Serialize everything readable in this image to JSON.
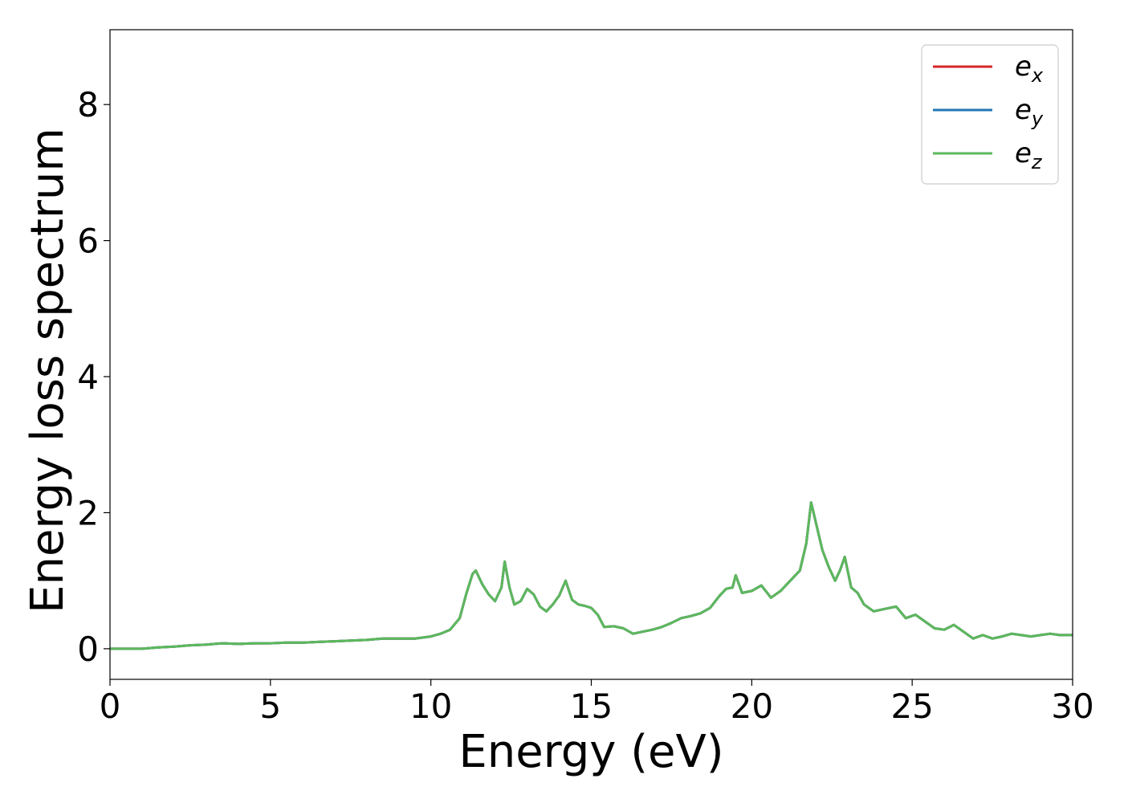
{
  "chart_data": {
    "type": "line",
    "title": "",
    "xlabel": "Energy (eV)",
    "ylabel": "Energy loss spectrum",
    "xlim": [
      0,
      30
    ],
    "ylim": [
      -0.45,
      9.1
    ],
    "xticks": [
      0,
      5,
      10,
      15,
      20,
      25,
      30
    ],
    "yticks": [
      0,
      2,
      4,
      6,
      8
    ],
    "grid": false,
    "legend_position": "top-right",
    "series": [
      {
        "name": "e_x",
        "label_base": "e",
        "label_sub": "x",
        "color": "#d62728",
        "x": [
          0,
          1,
          1.5,
          2,
          2.5,
          3,
          3.5,
          4,
          4.5,
          5,
          5.5,
          6,
          6.5,
          7,
          7.5,
          8,
          8.5,
          9,
          9.5,
          10,
          10.3,
          10.6,
          10.9,
          11.1,
          11.3,
          11.4,
          11.6,
          11.8,
          12.0,
          12.2,
          12.3,
          12.45,
          12.6,
          12.8,
          13.0,
          13.2,
          13.4,
          13.6,
          13.8,
          14.0,
          14.2,
          14.4,
          14.6,
          14.8,
          15.0,
          15.2,
          15.4,
          15.7,
          16.0,
          16.3,
          16.6,
          16.9,
          17.2,
          17.5,
          17.8,
          18.1,
          18.4,
          18.7,
          19.0,
          19.2,
          19.4,
          19.5,
          19.7,
          20.0,
          20.3,
          20.6,
          20.9,
          21.2,
          21.5,
          21.7,
          21.85,
          22.0,
          22.2,
          22.4,
          22.6,
          22.75,
          22.9,
          23.1,
          23.3,
          23.5,
          23.8,
          24.1,
          24.5,
          24.8,
          25.1,
          25.4,
          25.7,
          26.0,
          26.3,
          26.6,
          26.9,
          27.2,
          27.5,
          27.8,
          28.1,
          28.4,
          28.7,
          29.0,
          29.3,
          29.6,
          30.0
        ],
        "y": [
          0,
          0,
          0.02,
          0.03,
          0.05,
          0.06,
          0.08,
          0.07,
          0.08,
          0.08,
          0.09,
          0.09,
          0.1,
          0.11,
          0.12,
          0.13,
          0.15,
          0.15,
          0.15,
          0.18,
          0.22,
          0.28,
          0.45,
          0.8,
          1.1,
          1.15,
          0.95,
          0.8,
          0.7,
          0.9,
          1.28,
          0.9,
          0.65,
          0.7,
          0.88,
          0.8,
          0.62,
          0.55,
          0.65,
          0.78,
          1.0,
          0.72,
          0.65,
          0.63,
          0.6,
          0.5,
          0.32,
          0.33,
          0.3,
          0.22,
          0.25,
          0.28,
          0.32,
          0.38,
          0.45,
          0.48,
          0.52,
          0.6,
          0.78,
          0.88,
          0.9,
          1.08,
          0.82,
          0.85,
          0.93,
          0.75,
          0.85,
          1.0,
          1.15,
          1.55,
          2.15,
          1.85,
          1.45,
          1.2,
          1.0,
          1.15,
          1.35,
          0.9,
          0.82,
          0.65,
          0.55,
          0.58,
          0.62,
          0.45,
          0.5,
          0.4,
          0.3,
          0.28,
          0.35,
          0.25,
          0.15,
          0.2,
          0.15,
          0.18,
          0.22,
          0.2,
          0.18,
          0.2,
          0.22,
          0.2,
          0.2
        ]
      },
      {
        "name": "e_y",
        "label_base": "e",
        "label_sub": "y",
        "color": "#1f77b4",
        "x": [
          0,
          1,
          1.5,
          2,
          2.5,
          3,
          3.5,
          4,
          4.5,
          5,
          5.5,
          6,
          6.5,
          7,
          7.5,
          8,
          8.5,
          9,
          9.5,
          10,
          10.3,
          10.6,
          10.9,
          11.1,
          11.3,
          11.4,
          11.6,
          11.8,
          12.0,
          12.2,
          12.3,
          12.45,
          12.6,
          12.8,
          13.0,
          13.2,
          13.4,
          13.6,
          13.8,
          14.0,
          14.2,
          14.4,
          14.6,
          14.8,
          15.0,
          15.2,
          15.4,
          15.7,
          16.0,
          16.3,
          16.6,
          16.9,
          17.2,
          17.5,
          17.8,
          18.1,
          18.4,
          18.7,
          19.0,
          19.2,
          19.4,
          19.5,
          19.7,
          20.0,
          20.3,
          20.6,
          20.9,
          21.2,
          21.5,
          21.7,
          21.85,
          22.0,
          22.2,
          22.4,
          22.6,
          22.75,
          22.9,
          23.1,
          23.3,
          23.5,
          23.8,
          24.1,
          24.5,
          24.8,
          25.1,
          25.4,
          25.7,
          26.0,
          26.3,
          26.6,
          26.9,
          27.2,
          27.5,
          27.8,
          28.1,
          28.4,
          28.7,
          29.0,
          29.3,
          29.6,
          30.0
        ],
        "y": [
          0,
          0,
          0.02,
          0.03,
          0.05,
          0.06,
          0.08,
          0.07,
          0.08,
          0.08,
          0.09,
          0.09,
          0.1,
          0.11,
          0.12,
          0.13,
          0.15,
          0.15,
          0.15,
          0.18,
          0.22,
          0.28,
          0.45,
          0.8,
          1.1,
          1.15,
          0.95,
          0.8,
          0.7,
          0.9,
          1.28,
          0.9,
          0.65,
          0.7,
          0.88,
          0.8,
          0.62,
          0.55,
          0.65,
          0.78,
          1.0,
          0.72,
          0.65,
          0.63,
          0.6,
          0.5,
          0.32,
          0.33,
          0.3,
          0.22,
          0.25,
          0.28,
          0.32,
          0.38,
          0.45,
          0.48,
          0.52,
          0.6,
          0.78,
          0.88,
          0.9,
          1.08,
          0.82,
          0.85,
          0.93,
          0.75,
          0.85,
          1.0,
          1.15,
          1.55,
          2.15,
          1.85,
          1.45,
          1.2,
          1.0,
          1.15,
          1.35,
          0.9,
          0.82,
          0.65,
          0.55,
          0.58,
          0.62,
          0.45,
          0.5,
          0.4,
          0.3,
          0.28,
          0.35,
          0.25,
          0.15,
          0.2,
          0.15,
          0.18,
          0.22,
          0.2,
          0.18,
          0.2,
          0.22,
          0.2,
          0.2
        ]
      },
      {
        "name": "e_z",
        "label_base": "e",
        "label_sub": "z",
        "color": "#5cb85c",
        "x": [
          0,
          1,
          1.5,
          2,
          2.5,
          3,
          3.5,
          4,
          4.5,
          5,
          5.5,
          6,
          6.5,
          7,
          7.5,
          8,
          8.5,
          9,
          9.5,
          10,
          10.3,
          10.6,
          10.9,
          11.1,
          11.3,
          11.4,
          11.6,
          11.8,
          12.0,
          12.2,
          12.3,
          12.45,
          12.6,
          12.8,
          13.0,
          13.2,
          13.4,
          13.6,
          13.8,
          14.0,
          14.2,
          14.4,
          14.6,
          14.8,
          15.0,
          15.2,
          15.4,
          15.7,
          16.0,
          16.3,
          16.6,
          16.9,
          17.2,
          17.5,
          17.8,
          18.1,
          18.4,
          18.7,
          19.0,
          19.2,
          19.4,
          19.5,
          19.7,
          20.0,
          20.3,
          20.6,
          20.9,
          21.2,
          21.5,
          21.7,
          21.85,
          22.0,
          22.2,
          22.4,
          22.6,
          22.75,
          22.9,
          23.1,
          23.3,
          23.5,
          23.8,
          24.1,
          24.5,
          24.8,
          25.1,
          25.4,
          25.7,
          26.0,
          26.3,
          26.6,
          26.9,
          27.2,
          27.5,
          27.8,
          28.1,
          28.4,
          28.7,
          29.0,
          29.3,
          29.6,
          30.0
        ],
        "y": [
          0,
          0,
          0.02,
          0.03,
          0.05,
          0.06,
          0.08,
          0.07,
          0.08,
          0.08,
          0.09,
          0.09,
          0.1,
          0.11,
          0.12,
          0.13,
          0.15,
          0.15,
          0.15,
          0.18,
          0.22,
          0.28,
          0.45,
          0.8,
          1.1,
          1.15,
          0.95,
          0.8,
          0.7,
          0.9,
          1.28,
          0.9,
          0.65,
          0.7,
          0.88,
          0.8,
          0.62,
          0.55,
          0.65,
          0.78,
          1.0,
          0.72,
          0.65,
          0.63,
          0.6,
          0.5,
          0.32,
          0.33,
          0.3,
          0.22,
          0.25,
          0.28,
          0.32,
          0.38,
          0.45,
          0.48,
          0.52,
          0.6,
          0.78,
          0.88,
          0.9,
          1.08,
          0.82,
          0.85,
          0.93,
          0.75,
          0.85,
          1.0,
          1.15,
          1.55,
          2.15,
          1.85,
          1.45,
          1.2,
          1.0,
          1.15,
          1.35,
          0.9,
          0.82,
          0.65,
          0.55,
          0.58,
          0.62,
          0.45,
          0.5,
          0.4,
          0.3,
          0.28,
          0.35,
          0.25,
          0.15,
          0.2,
          0.15,
          0.18,
          0.22,
          0.2,
          0.18,
          0.2,
          0.22,
          0.2,
          0.2
        ]
      }
    ]
  }
}
